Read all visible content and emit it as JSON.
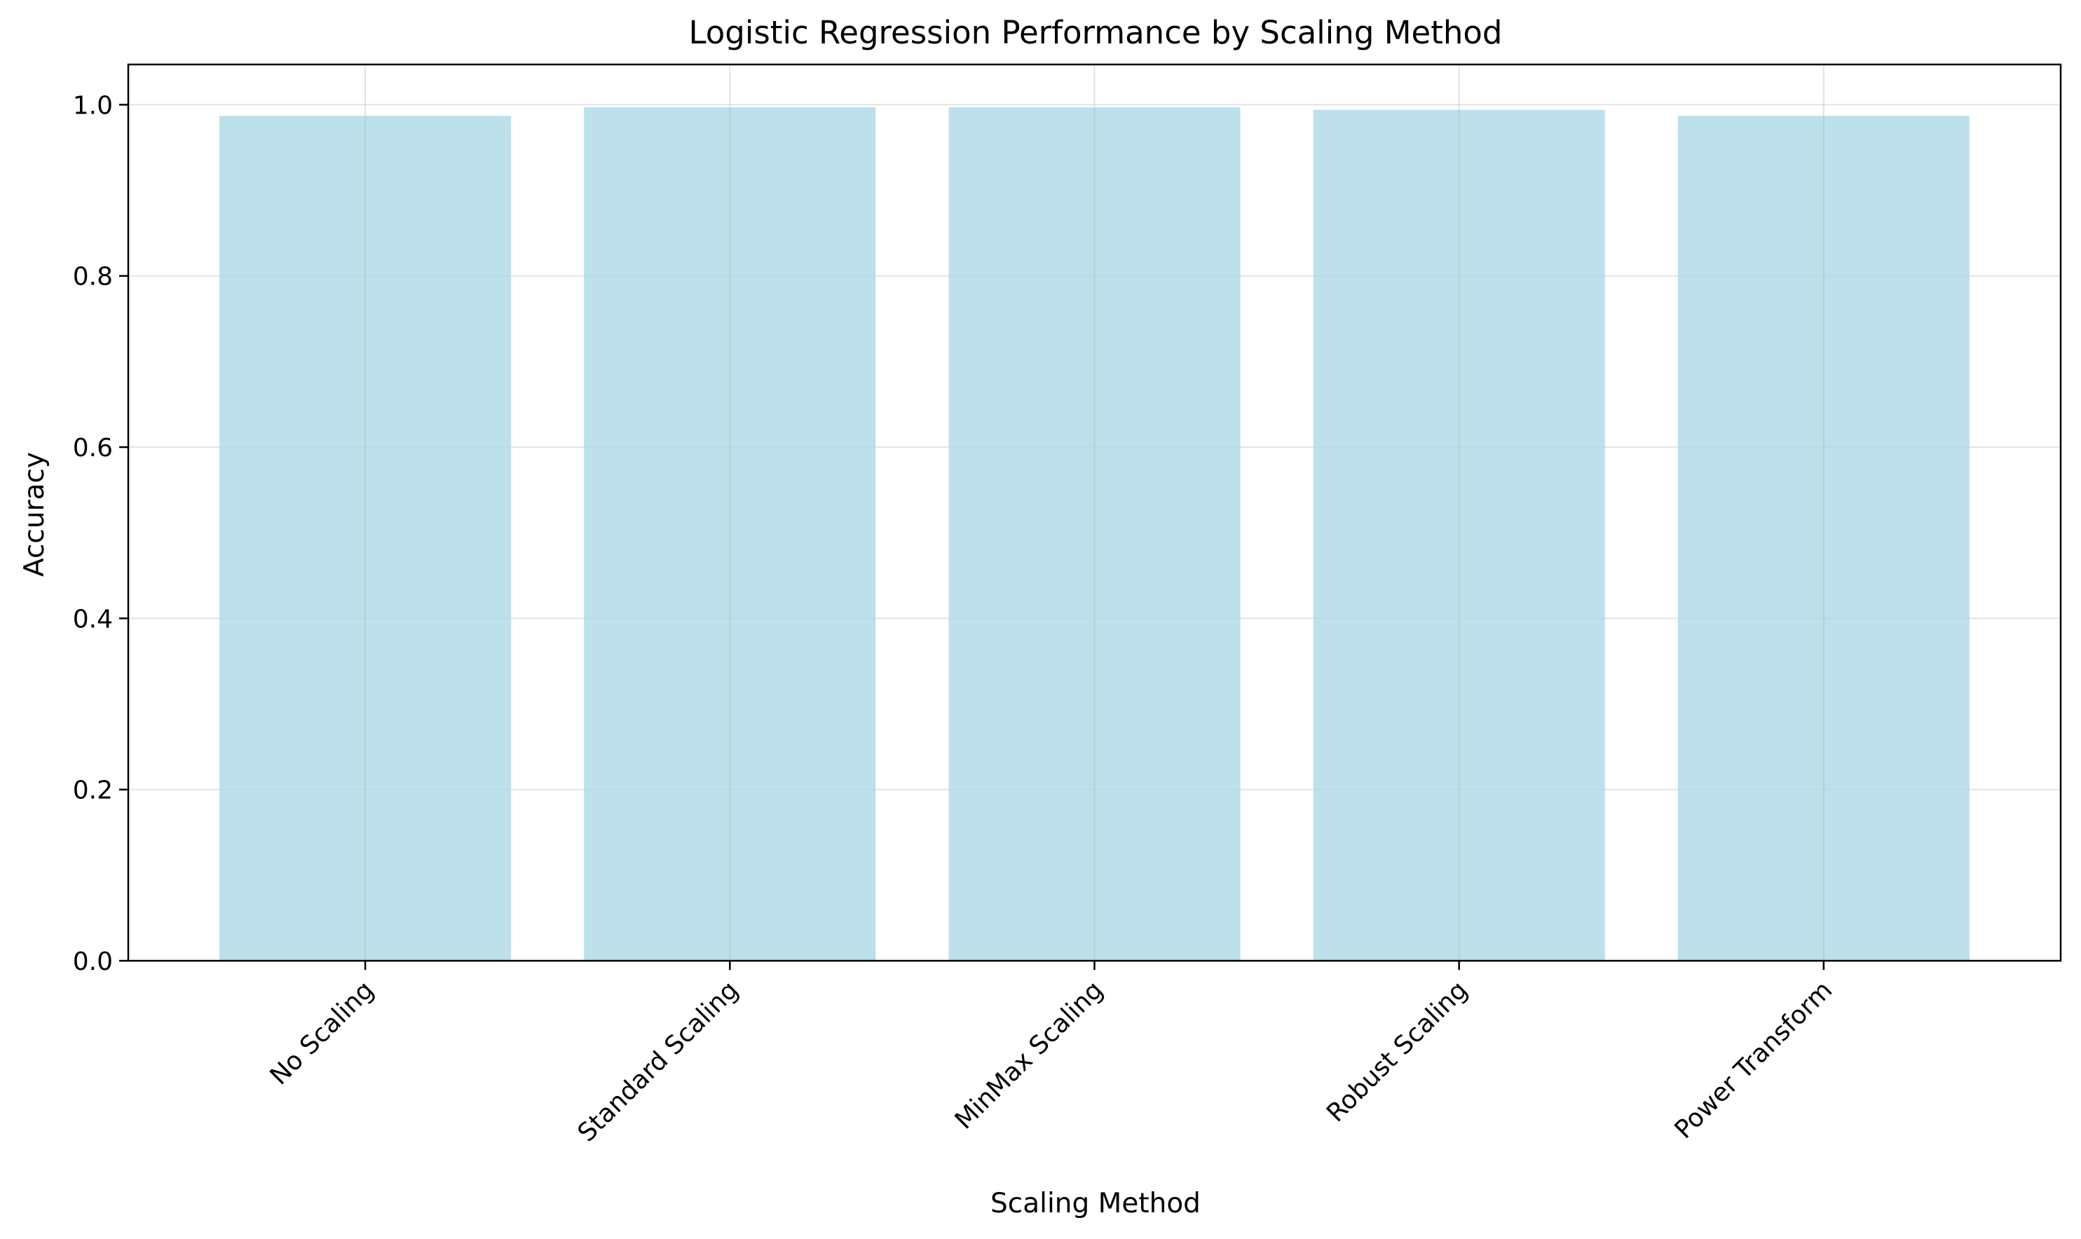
{
  "chart_data": {
    "type": "bar",
    "title": "Logistic Regression Performance by Scaling Method",
    "xlabel": "Scaling Method",
    "ylabel": "Accuracy",
    "categories": [
      "No Scaling",
      "Standard Scaling",
      "MinMax Scaling",
      "Robust Scaling",
      "Power Transform"
    ],
    "values": [
      0.987,
      0.997,
      0.997,
      0.994,
      0.987
    ],
    "ylim": [
      0,
      1.047
    ],
    "yticks": [
      0.0,
      0.2,
      0.4,
      0.6,
      0.8,
      1.0
    ],
    "ytick_labels": [
      "0.0",
      "0.2",
      "0.4",
      "0.6",
      "0.8",
      "1.0"
    ],
    "grid": true,
    "legend": "none",
    "colors": {
      "bar": "#add8e6",
      "grid": "#b0b0b0",
      "axis": "#000000",
      "background": "#ffffff"
    }
  }
}
